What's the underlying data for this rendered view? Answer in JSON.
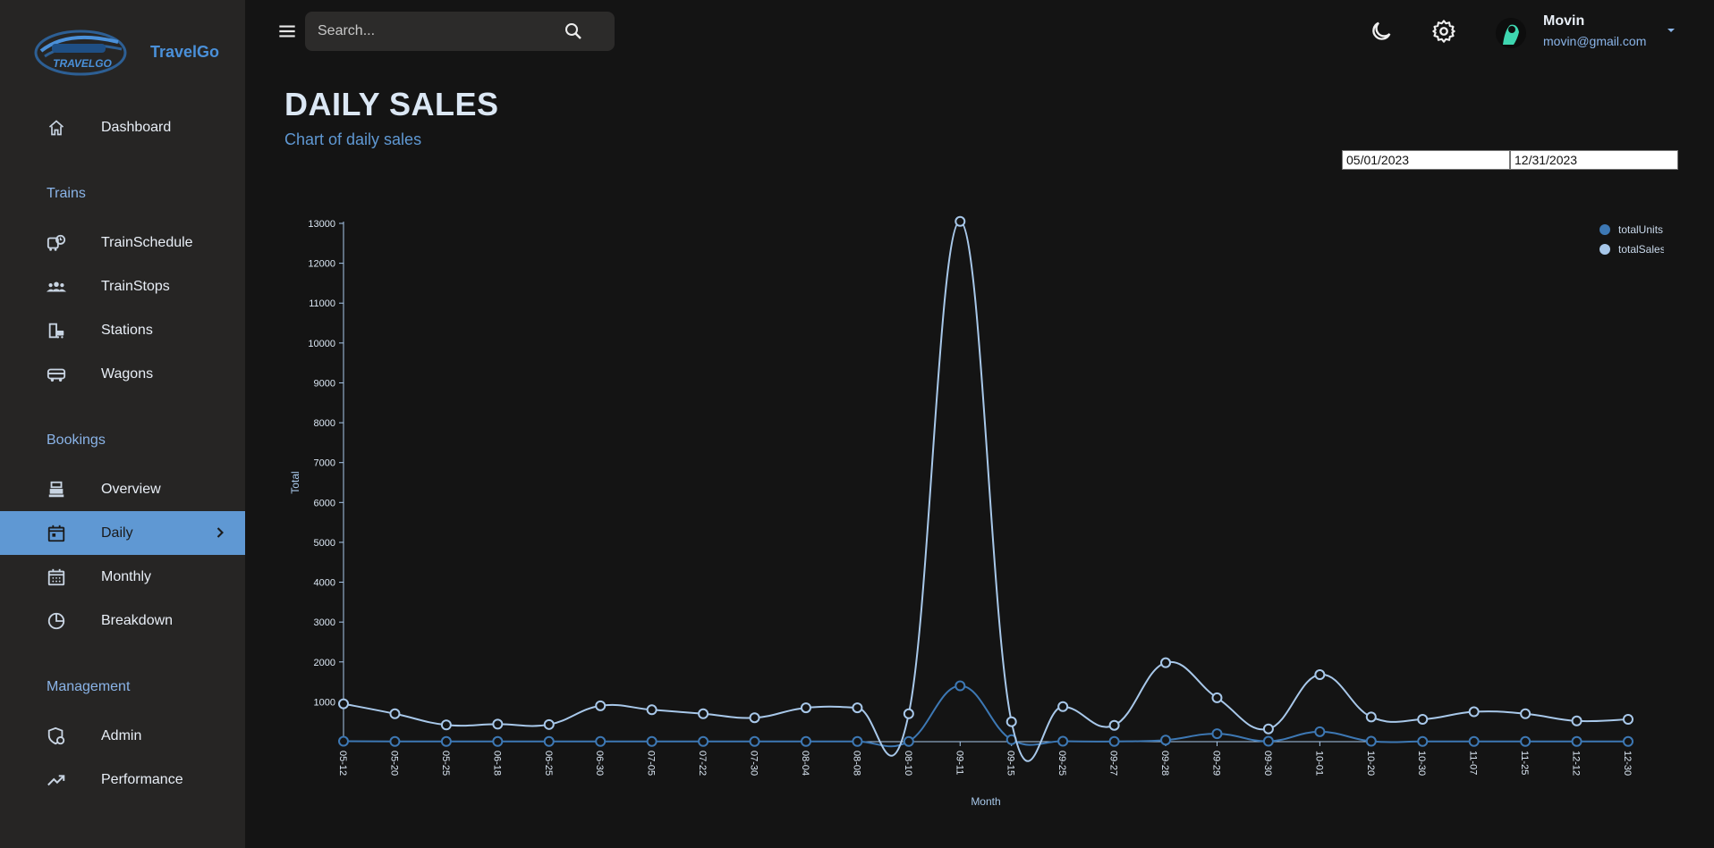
{
  "brand": {
    "name": "TravelGo",
    "logo_text": "TRAVELGO"
  },
  "sidebar": {
    "dashboard": "Dashboard",
    "sections": [
      {
        "title": "Trains",
        "items": [
          "TrainSchedule",
          "TrainStops",
          "Stations",
          "Wagons"
        ]
      },
      {
        "title": "Bookings",
        "items": [
          "Overview",
          "Daily",
          "Monthly",
          "Breakdown"
        ]
      },
      {
        "title": "Management",
        "items": [
          "Admin",
          "Performance"
        ]
      }
    ],
    "active_item": "Daily"
  },
  "search": {
    "placeholder": "Search..."
  },
  "user": {
    "name": "Movin",
    "email": "movin@gmail.com"
  },
  "page": {
    "title": "DAILY SALES",
    "subtitle": "Chart of daily sales"
  },
  "date_range": {
    "start": "05/01/2023",
    "end": "12/31/2023"
  },
  "colors": {
    "accent": "#5f98d3",
    "sales_line": "#a8c8ea",
    "units_line": "#3d78b4"
  },
  "chart_data": {
    "type": "line",
    "xlabel": "Month",
    "ylabel": "Total",
    "ylim": [
      0,
      13000
    ],
    "yticks": [
      1000,
      2000,
      3000,
      4000,
      5000,
      6000,
      7000,
      8000,
      9000,
      10000,
      11000,
      12000,
      13000
    ],
    "categories": [
      "05-12",
      "05-20",
      "05-25",
      "06-18",
      "06-25",
      "06-30",
      "07-05",
      "07-22",
      "07-30",
      "08-04",
      "08-08",
      "08-10",
      "09-11",
      "09-15",
      "09-25",
      "09-27",
      "09-28",
      "09-29",
      "09-30",
      "10-01",
      "10-20",
      "10-30",
      "11-07",
      "11-25",
      "12-12",
      "12-30"
    ],
    "series": [
      {
        "name": "totalUnits",
        "values": [
          10,
          5,
          5,
          5,
          5,
          5,
          5,
          5,
          5,
          5,
          5,
          5,
          1400,
          50,
          10,
          5,
          40,
          200,
          10,
          250,
          10,
          5,
          5,
          5,
          5,
          5
        ]
      },
      {
        "name": "totalSales",
        "values": [
          950,
          700,
          420,
          440,
          430,
          900,
          800,
          700,
          600,
          850,
          850,
          700,
          13050,
          500,
          880,
          410,
          1980,
          1100,
          320,
          1680,
          620,
          560,
          750,
          700,
          520,
          560
        ]
      }
    ],
    "legend_position": "top-right"
  }
}
